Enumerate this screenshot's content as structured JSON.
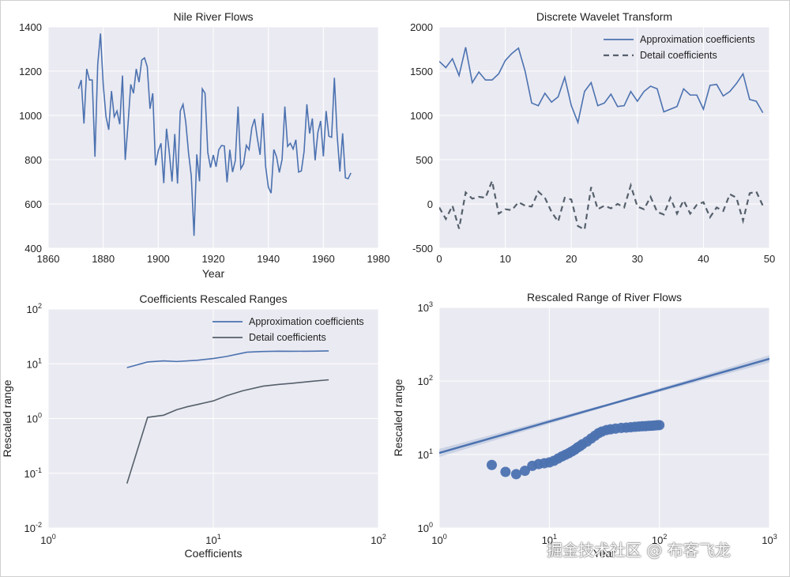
{
  "colors": {
    "axes_bg": "#eaeaf2",
    "grid": "#ffffff",
    "series1": "#4c72b0",
    "series2": "#55606b",
    "text": "#222222"
  },
  "watermark": "掘金技术社区 @ 布客飞龙",
  "chart_data": [
    {
      "type": "line",
      "title": "Nile River Flows",
      "xlabel": "Year",
      "ylabel": "",
      "xlim": [
        1860,
        1980
      ],
      "ylim": [
        400,
        1400
      ],
      "xticks": [
        1860,
        1880,
        1900,
        1920,
        1940,
        1960,
        1980
      ],
      "yticks": [
        400,
        600,
        800,
        1000,
        1200,
        1400
      ],
      "series": [
        {
          "x_start": 1871,
          "x_step": 1,
          "values": [
            1120,
            1160,
            963,
            1210,
            1160,
            1160,
            813,
            1230,
            1370,
            1140,
            995,
            935,
            1110,
            994,
            1020,
            960,
            1180,
            799,
            958,
            1140,
            1100,
            1210,
            1150,
            1250,
            1260,
            1220,
            1030,
            1100,
            774,
            840,
            874,
            694,
            940,
            833,
            701,
            916,
            692,
            1020,
            1050,
            969,
            831,
            726,
            456,
            824,
            702,
            1120,
            1100,
            832,
            764,
            821,
            768,
            845,
            864,
            862,
            698,
            845,
            744,
            796,
            1040,
            759,
            781,
            865,
            845,
            944,
            984,
            897,
            822,
            1010,
            771,
            676,
            649,
            846,
            812,
            742,
            801,
            1040,
            860,
            874,
            848,
            890,
            744,
            749,
            838,
            1050,
            918,
            986,
            797,
            923,
            975,
            815,
            1020,
            906,
            901,
            1170,
            912,
            746,
            919,
            718,
            714,
            740
          ]
        }
      ]
    },
    {
      "type": "line",
      "title": "Discrete Wavelet Transform",
      "xlabel": "",
      "ylabel": "",
      "xlim": [
        0,
        50
      ],
      "ylim": [
        -500,
        2000
      ],
      "xticks": [
        0,
        10,
        20,
        30,
        40,
        50
      ],
      "yticks": [
        -500,
        0,
        500,
        1000,
        1500,
        2000
      ],
      "legend": "top-right",
      "series": [
        {
          "name": "Approximation coefficients",
          "style": "solid",
          "values": [
            1610,
            1540,
            1640,
            1450,
            1770,
            1370,
            1490,
            1400,
            1400,
            1470,
            1620,
            1700,
            1760,
            1500,
            1140,
            1110,
            1250,
            1150,
            1210,
            1430,
            1110,
            920,
            1270,
            1370,
            1110,
            1140,
            1240,
            1100,
            1110,
            1270,
            1160,
            1270,
            1330,
            1300,
            1040,
            1070,
            1100,
            1300,
            1230,
            1230,
            1070,
            1340,
            1350,
            1220,
            1270,
            1360,
            1470,
            1180,
            1160,
            1030
          ]
        },
        {
          "name": "Detail coefficients",
          "style": "dashed",
          "values": [
            -40,
            -170,
            -20,
            -280,
            130,
            60,
            80,
            70,
            260,
            -110,
            -60,
            -70,
            20,
            -20,
            -30,
            140,
            70,
            -90,
            -200,
            70,
            50,
            -250,
            -290,
            190,
            -60,
            -20,
            -50,
            0,
            -40,
            210,
            -30,
            -60,
            80,
            -90,
            -120,
            70,
            -110,
            40,
            -110,
            -10,
            20,
            -150,
            -40,
            -80,
            110,
            70,
            -190,
            120,
            140,
            -20
          ]
        }
      ]
    },
    {
      "type": "line",
      "title": "Coefficients Rescaled Ranges",
      "xlabel": "Coefficients",
      "ylabel": "Rescaled range",
      "xscale": "log",
      "yscale": "log",
      "xlim": [
        1,
        100
      ],
      "ylim": [
        0.01,
        100
      ],
      "xticks": [
        1,
        10,
        100
      ],
      "xticklabels": [
        "10^0",
        "10^1",
        "10^2"
      ],
      "yticks": [
        0.01,
        0.1,
        1,
        10,
        100
      ],
      "yticklabels": [
        "10^-2",
        "10^-1",
        "10^0",
        "10^1",
        "10^2"
      ],
      "legend": "top-right",
      "series": [
        {
          "name": "Approximation coefficients",
          "x": [
            3,
            4,
            5,
            6,
            8,
            10,
            12,
            14,
            16,
            20,
            25,
            30,
            40,
            50
          ],
          "y": [
            8.5,
            10.8,
            11.3,
            11.0,
            11.6,
            12.5,
            13.6,
            15.0,
            16.3,
            16.8,
            17.0,
            16.9,
            17.0,
            17.2
          ]
        },
        {
          "name": "Detail coefficients",
          "x": [
            3,
            4,
            5,
            6,
            7,
            8,
            10,
            12,
            15,
            20,
            25,
            30,
            40,
            50
          ],
          "y": [
            0.065,
            1.05,
            1.15,
            1.45,
            1.65,
            1.8,
            2.1,
            2.6,
            3.2,
            3.9,
            4.2,
            4.4,
            4.8,
            5.1
          ]
        }
      ]
    },
    {
      "type": "scatter",
      "title": "Rescaled Range of River Flows",
      "xlabel": "Year",
      "ylabel": "Rescaled range",
      "xscale": "log",
      "yscale": "log",
      "xlim": [
        1,
        1000
      ],
      "ylim": [
        1,
        1000
      ],
      "xticks": [
        1,
        10,
        100,
        1000
      ],
      "xticklabels": [
        "10^0",
        "10^1",
        "10^2",
        "10^3"
      ],
      "yticks": [
        1,
        10,
        100,
        1000
      ],
      "yticklabels": [
        "10^0",
        "10^1",
        "10^2",
        "10^3"
      ],
      "series": [
        {
          "name": "",
          "points": [
            [
              3,
              7.2
            ],
            [
              4,
              5.8
            ],
            [
              5,
              5.4
            ],
            [
              6,
              6.0
            ],
            [
              7,
              7.0
            ],
            [
              8,
              7.4
            ],
            [
              9,
              7.6
            ],
            [
              10,
              7.8
            ],
            [
              11,
              8.2
            ],
            [
              12,
              8.8
            ],
            [
              13,
              9.4
            ],
            [
              14,
              9.9
            ],
            [
              15,
              10.4
            ],
            [
              16,
              11.0
            ],
            [
              17,
              11.6
            ],
            [
              18,
              12.4
            ],
            [
              19,
              13.0
            ],
            [
              20,
              13.8
            ],
            [
              22,
              15.0
            ],
            [
              24,
              16.5
            ],
            [
              26,
              18.0
            ],
            [
              28,
              19.5
            ],
            [
              30,
              20.5
            ],
            [
              33,
              21.5
            ],
            [
              36,
              22.0
            ],
            [
              40,
              22.5
            ],
            [
              45,
              23.0
            ],
            [
              50,
              23.2
            ],
            [
              55,
              23.5
            ],
            [
              60,
              23.8
            ],
            [
              65,
              24.0
            ],
            [
              70,
              24.2
            ],
            [
              75,
              24.3
            ],
            [
              80,
              24.5
            ],
            [
              85,
              24.6
            ],
            [
              90,
              24.8
            ],
            [
              95,
              25.0
            ],
            [
              100,
              25.1
            ]
          ]
        },
        {
          "name": "",
          "fit": true,
          "x": [
            1,
            1000
          ],
          "y": [
            10.5,
            200
          ]
        }
      ]
    }
  ]
}
